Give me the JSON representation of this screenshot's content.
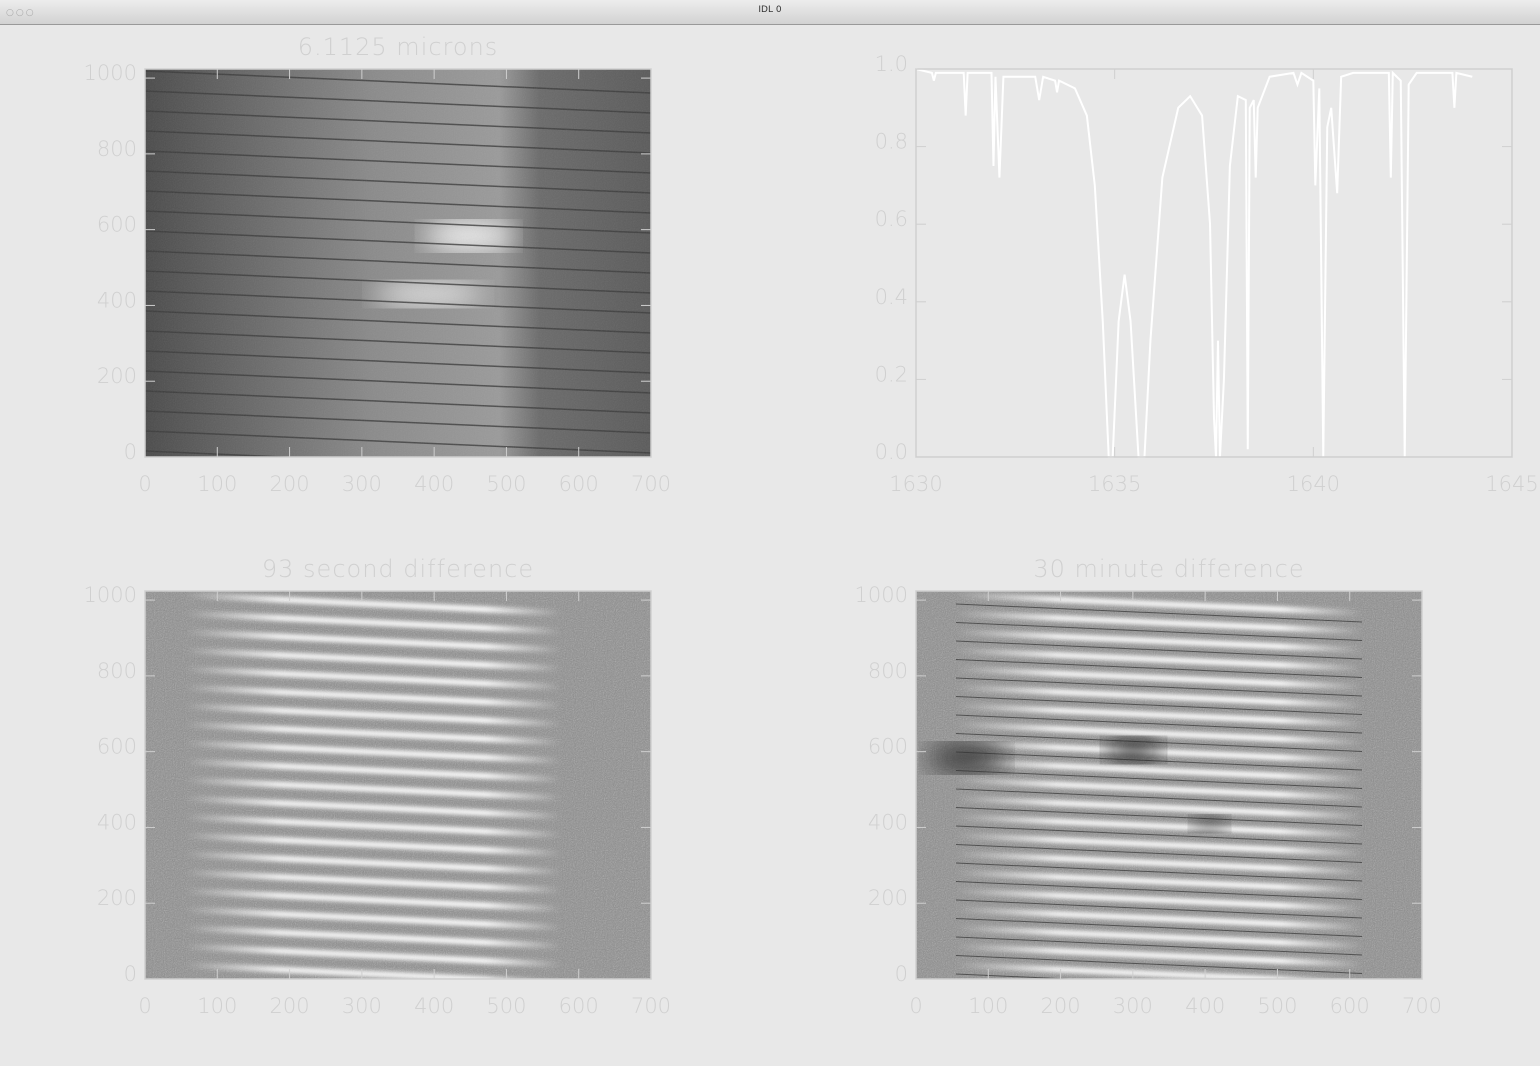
{
  "window": {
    "title": "IDL 0"
  },
  "chart_data": [
    {
      "type": "image",
      "title": "6.1125 microns",
      "xlim": [
        0,
        700
      ],
      "ylim": [
        0,
        1024
      ],
      "xticks": [
        0,
        100,
        200,
        300,
        400,
        500,
        600,
        700
      ],
      "yticks": [
        0,
        200,
        400,
        600,
        800,
        1000
      ]
    },
    {
      "type": "line",
      "xlim": [
        1630,
        1645
      ],
      "ylim": [
        0,
        1.0
      ],
      "xticks": [
        1630,
        1635,
        1640,
        1645
      ],
      "yticks": [
        {
          "value": 0,
          "label": "0.0"
        },
        0.2,
        0.4,
        0.6,
        0.8,
        {
          "value": 1,
          "label": "1.0"
        }
      ],
      "color": "#ffffff",
      "x": [
        1630.0,
        1630.4,
        1630.45,
        1630.5,
        1631.2,
        1631.25,
        1631.3,
        1631.9,
        1631.95,
        1632.0,
        1632.1,
        1632.2,
        1633.0,
        1633.1,
        1633.2,
        1633.5,
        1633.55,
        1633.6,
        1634.0,
        1634.3,
        1634.5,
        1634.7,
        1634.85,
        1634.95,
        1635.1,
        1635.25,
        1635.4,
        1635.6,
        1635.75,
        1635.9,
        1636.2,
        1636.6,
        1636.9,
        1637.2,
        1637.4,
        1637.5,
        1637.55,
        1637.6,
        1637.65,
        1637.75,
        1637.9,
        1638.1,
        1638.3,
        1638.35,
        1638.4,
        1638.5,
        1638.55,
        1638.6,
        1638.9,
        1639.5,
        1639.6,
        1639.7,
        1640.0,
        1640.05,
        1640.15,
        1640.25,
        1640.35,
        1640.45,
        1640.6,
        1640.7,
        1641.0,
        1641.9,
        1641.95,
        1642.0,
        1642.2,
        1642.3,
        1642.4,
        1642.6,
        1643.5,
        1643.55,
        1643.6,
        1644.0
      ],
      "values": [
        1.0,
        0.99,
        0.97,
        0.99,
        0.99,
        0.88,
        0.99,
        0.99,
        0.75,
        0.98,
        0.72,
        0.98,
        0.98,
        0.92,
        0.98,
        0.97,
        0.94,
        0.97,
        0.95,
        0.88,
        0.7,
        0.35,
        0.0,
        0.0,
        0.35,
        0.47,
        0.35,
        0.0,
        0.0,
        0.3,
        0.72,
        0.9,
        0.93,
        0.88,
        0.6,
        0.1,
        0.0,
        0.3,
        0.0,
        0.2,
        0.75,
        0.93,
        0.92,
        0.02,
        0.9,
        0.92,
        0.72,
        0.9,
        0.98,
        0.99,
        0.96,
        0.99,
        0.97,
        0.7,
        0.95,
        0.0,
        0.85,
        0.9,
        0.68,
        0.98,
        0.99,
        0.99,
        0.72,
        0.99,
        0.97,
        0.0,
        0.96,
        0.99,
        0.99,
        0.9,
        0.99,
        0.98
      ]
    },
    {
      "type": "image",
      "title": "93 second difference",
      "xlim": [
        0,
        700
      ],
      "ylim": [
        0,
        1024
      ],
      "xticks": [
        0,
        100,
        200,
        300,
        400,
        500,
        600,
        700
      ],
      "yticks": [
        0,
        200,
        400,
        600,
        800,
        1000
      ]
    },
    {
      "type": "image",
      "title": "30 minute difference",
      "xlim": [
        0,
        700
      ],
      "ylim": [
        0,
        1024
      ],
      "xticks": [
        0,
        100,
        200,
        300,
        400,
        500,
        600,
        700
      ],
      "yticks": [
        0,
        200,
        400,
        600,
        800,
        1000
      ]
    }
  ]
}
